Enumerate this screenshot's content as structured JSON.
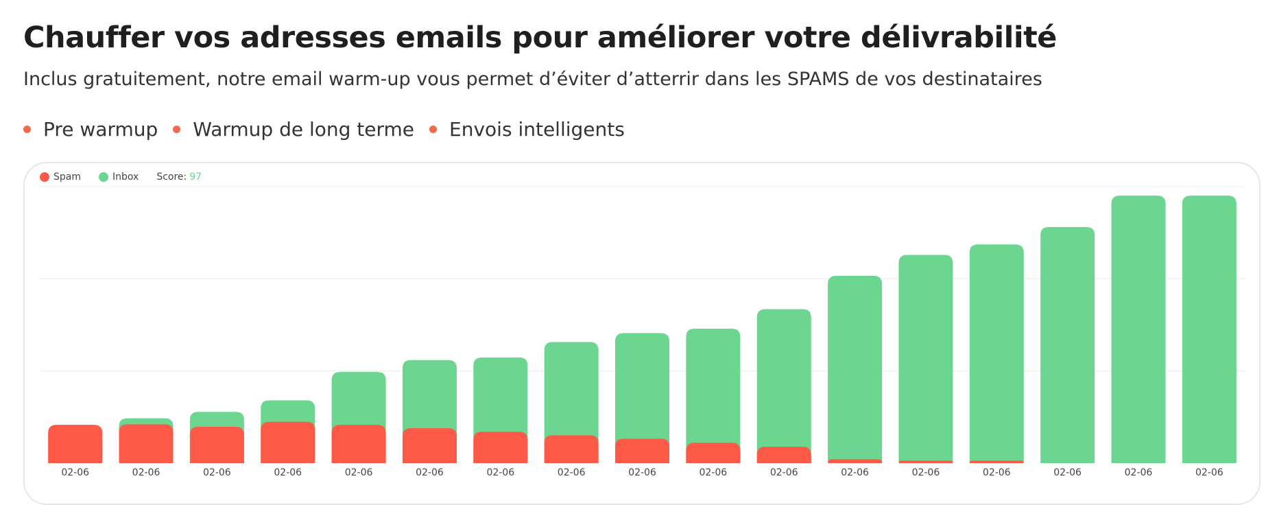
{
  "header": {
    "title": "Chauffer vos adresses emails pour améliorer votre délivrabilité",
    "subtitle": "Inclus gratuitement, notre email warm-up vous permet d’éviter d’atterrir dans les SPAMS de vos destinataires"
  },
  "features": [
    {
      "label": "Pre warmup"
    },
    {
      "label": "Warmup de long terme"
    },
    {
      "label": "Envois intelligents"
    }
  ],
  "legend": {
    "spam_label": "Spam",
    "inbox_label": "Inbox",
    "score_label": "Score:",
    "score_value": "97"
  },
  "colors": {
    "spam": "#fc5a46",
    "inbox": "#6cd58f",
    "bullet": "#ef6a4d",
    "grid": "#ececec"
  },
  "chart_data": {
    "type": "bar",
    "stacked": true,
    "categories": [
      "02-06",
      "02-06",
      "02-06",
      "02-06",
      "02-06",
      "02-06",
      "02-06",
      "02-06",
      "02-06",
      "02-06",
      "02-06",
      "02-06",
      "02-06",
      "02-06",
      "02-06",
      "02-06",
      "02-06"
    ],
    "series": [
      {
        "name": "Spam",
        "values": [
          7.7,
          7.8,
          7.3,
          8.3,
          7.7,
          7.0,
          6.3,
          5.6,
          4.9,
          4.1,
          3.3,
          0.8,
          0.5,
          0.5,
          0,
          0,
          0
        ]
      },
      {
        "name": "Inbox",
        "values": [
          0,
          1.2,
          3.0,
          4.3,
          10.6,
          13.7,
          14.9,
          18.7,
          21.2,
          22.9,
          27.6,
          36.8,
          41.3,
          43.4,
          47.4,
          53.7,
          53.7
        ]
      }
    ],
    "ylim": [
      0,
      55.5
    ],
    "grid": true,
    "legend_position": "top-left"
  }
}
